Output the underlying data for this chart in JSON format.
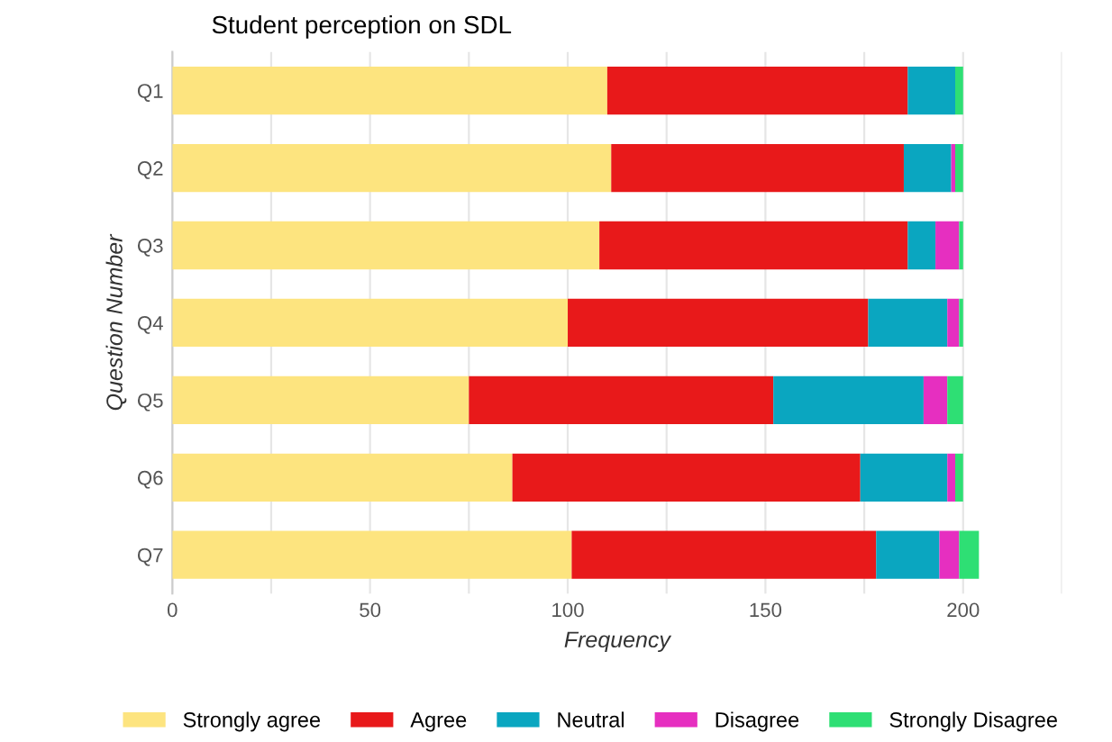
{
  "chart_data": {
    "type": "bar",
    "title": "Student perception on SDL",
    "xlabel": "Frequency",
    "ylabel": "Question Number",
    "orientation": "horizontal",
    "stacked": true,
    "categories": [
      "Q1",
      "Q2",
      "Q3",
      "Q4",
      "Q5",
      "Q6",
      "Q7"
    ],
    "series": [
      {
        "name": "Strongly agree",
        "color": "#fde47f",
        "values": [
          110,
          111,
          108,
          100,
          75,
          86,
          101
        ]
      },
      {
        "name": "Agree",
        "color": "#e8191a",
        "values": [
          76,
          74,
          78,
          76,
          77,
          88,
          77
        ]
      },
      {
        "name": "Neutral",
        "color": "#0aa6c0",
        "values": [
          12,
          12,
          7,
          20,
          38,
          22,
          16
        ]
      },
      {
        "name": "Disagree",
        "color": "#e62fc0",
        "values": [
          0,
          1,
          6,
          3,
          6,
          2,
          5
        ]
      },
      {
        "name": "Strongly Disagree",
        "color": "#2edf74",
        "values": [
          2,
          2,
          1,
          1,
          4,
          2,
          5
        ]
      }
    ],
    "xlim": [
      0,
      225
    ],
    "xticks": [
      0,
      {
        "value": 25,
        "label": null
      },
      50,
      {
        "value": 75,
        "label": null
      },
      100,
      {
        "value": 125,
        "label": null
      },
      150,
      {
        "value": 175,
        "label": null
      },
      200,
      {
        "value": 225,
        "label": null
      }
    ],
    "grid": "x",
    "legend": "bottom"
  }
}
